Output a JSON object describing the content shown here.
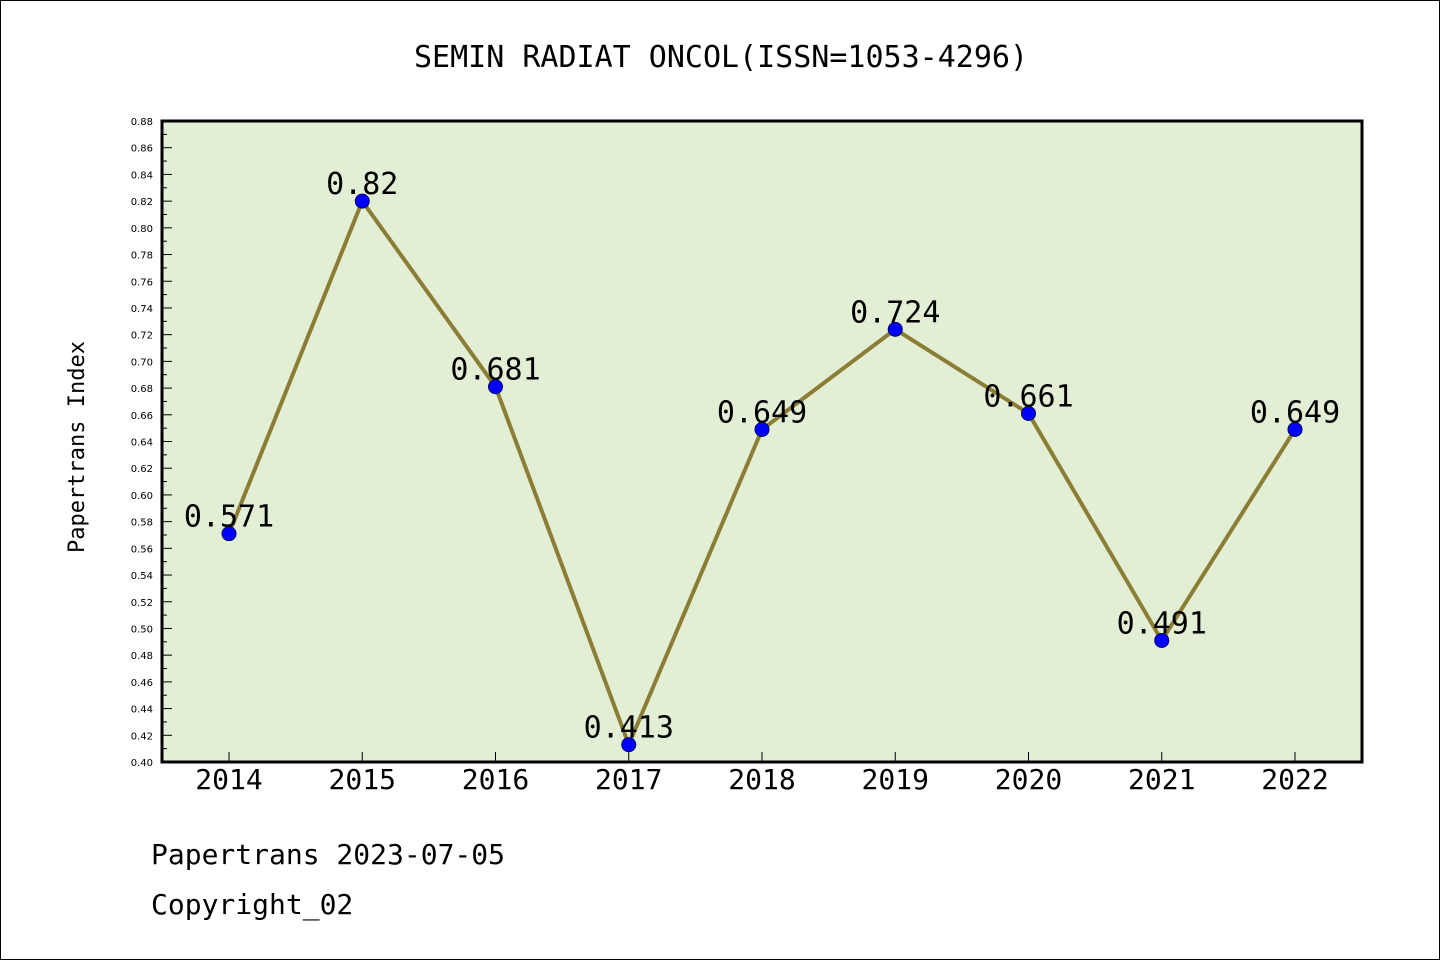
{
  "chart_data": {
    "type": "line",
    "title": "SEMIN RADIAT ONCOL(ISSN=1053-4296)",
    "xlabel": "",
    "ylabel": "Papertrans Index",
    "categories": [
      "2014",
      "2015",
      "2016",
      "2017",
      "2018",
      "2019",
      "2020",
      "2021",
      "2022"
    ],
    "series": [
      {
        "values": [
          0.571,
          0.82,
          0.681,
          0.413,
          0.649,
          0.724,
          0.661,
          0.491,
          0.649
        ],
        "labels": [
          "0.571",
          "0.82",
          "0.681",
          "0.413",
          "0.649",
          "0.724",
          "0.661",
          "0.491",
          "0.649"
        ]
      }
    ],
    "ylim": [
      0.4,
      0.88
    ],
    "yticks": [
      "0.40",
      "0.42",
      "0.44",
      "0.46",
      "0.48",
      "0.50",
      "0.52",
      "0.54",
      "0.56",
      "0.58",
      "0.60",
      "0.62",
      "0.64",
      "0.66",
      "0.68",
      "0.70",
      "0.72",
      "0.74",
      "0.76",
      "0.78",
      "0.80",
      "0.82",
      "0.84",
      "0.86",
      "0.88"
    ],
    "grid": false,
    "colors": {
      "plot_background": "#e2efd5",
      "line": "#8c7d35",
      "marker": "#0000ff",
      "marker_edge": "#000066"
    }
  },
  "footer": {
    "line1": "Papertrans 2023-07-05",
    "line2": "Copyright_02"
  }
}
